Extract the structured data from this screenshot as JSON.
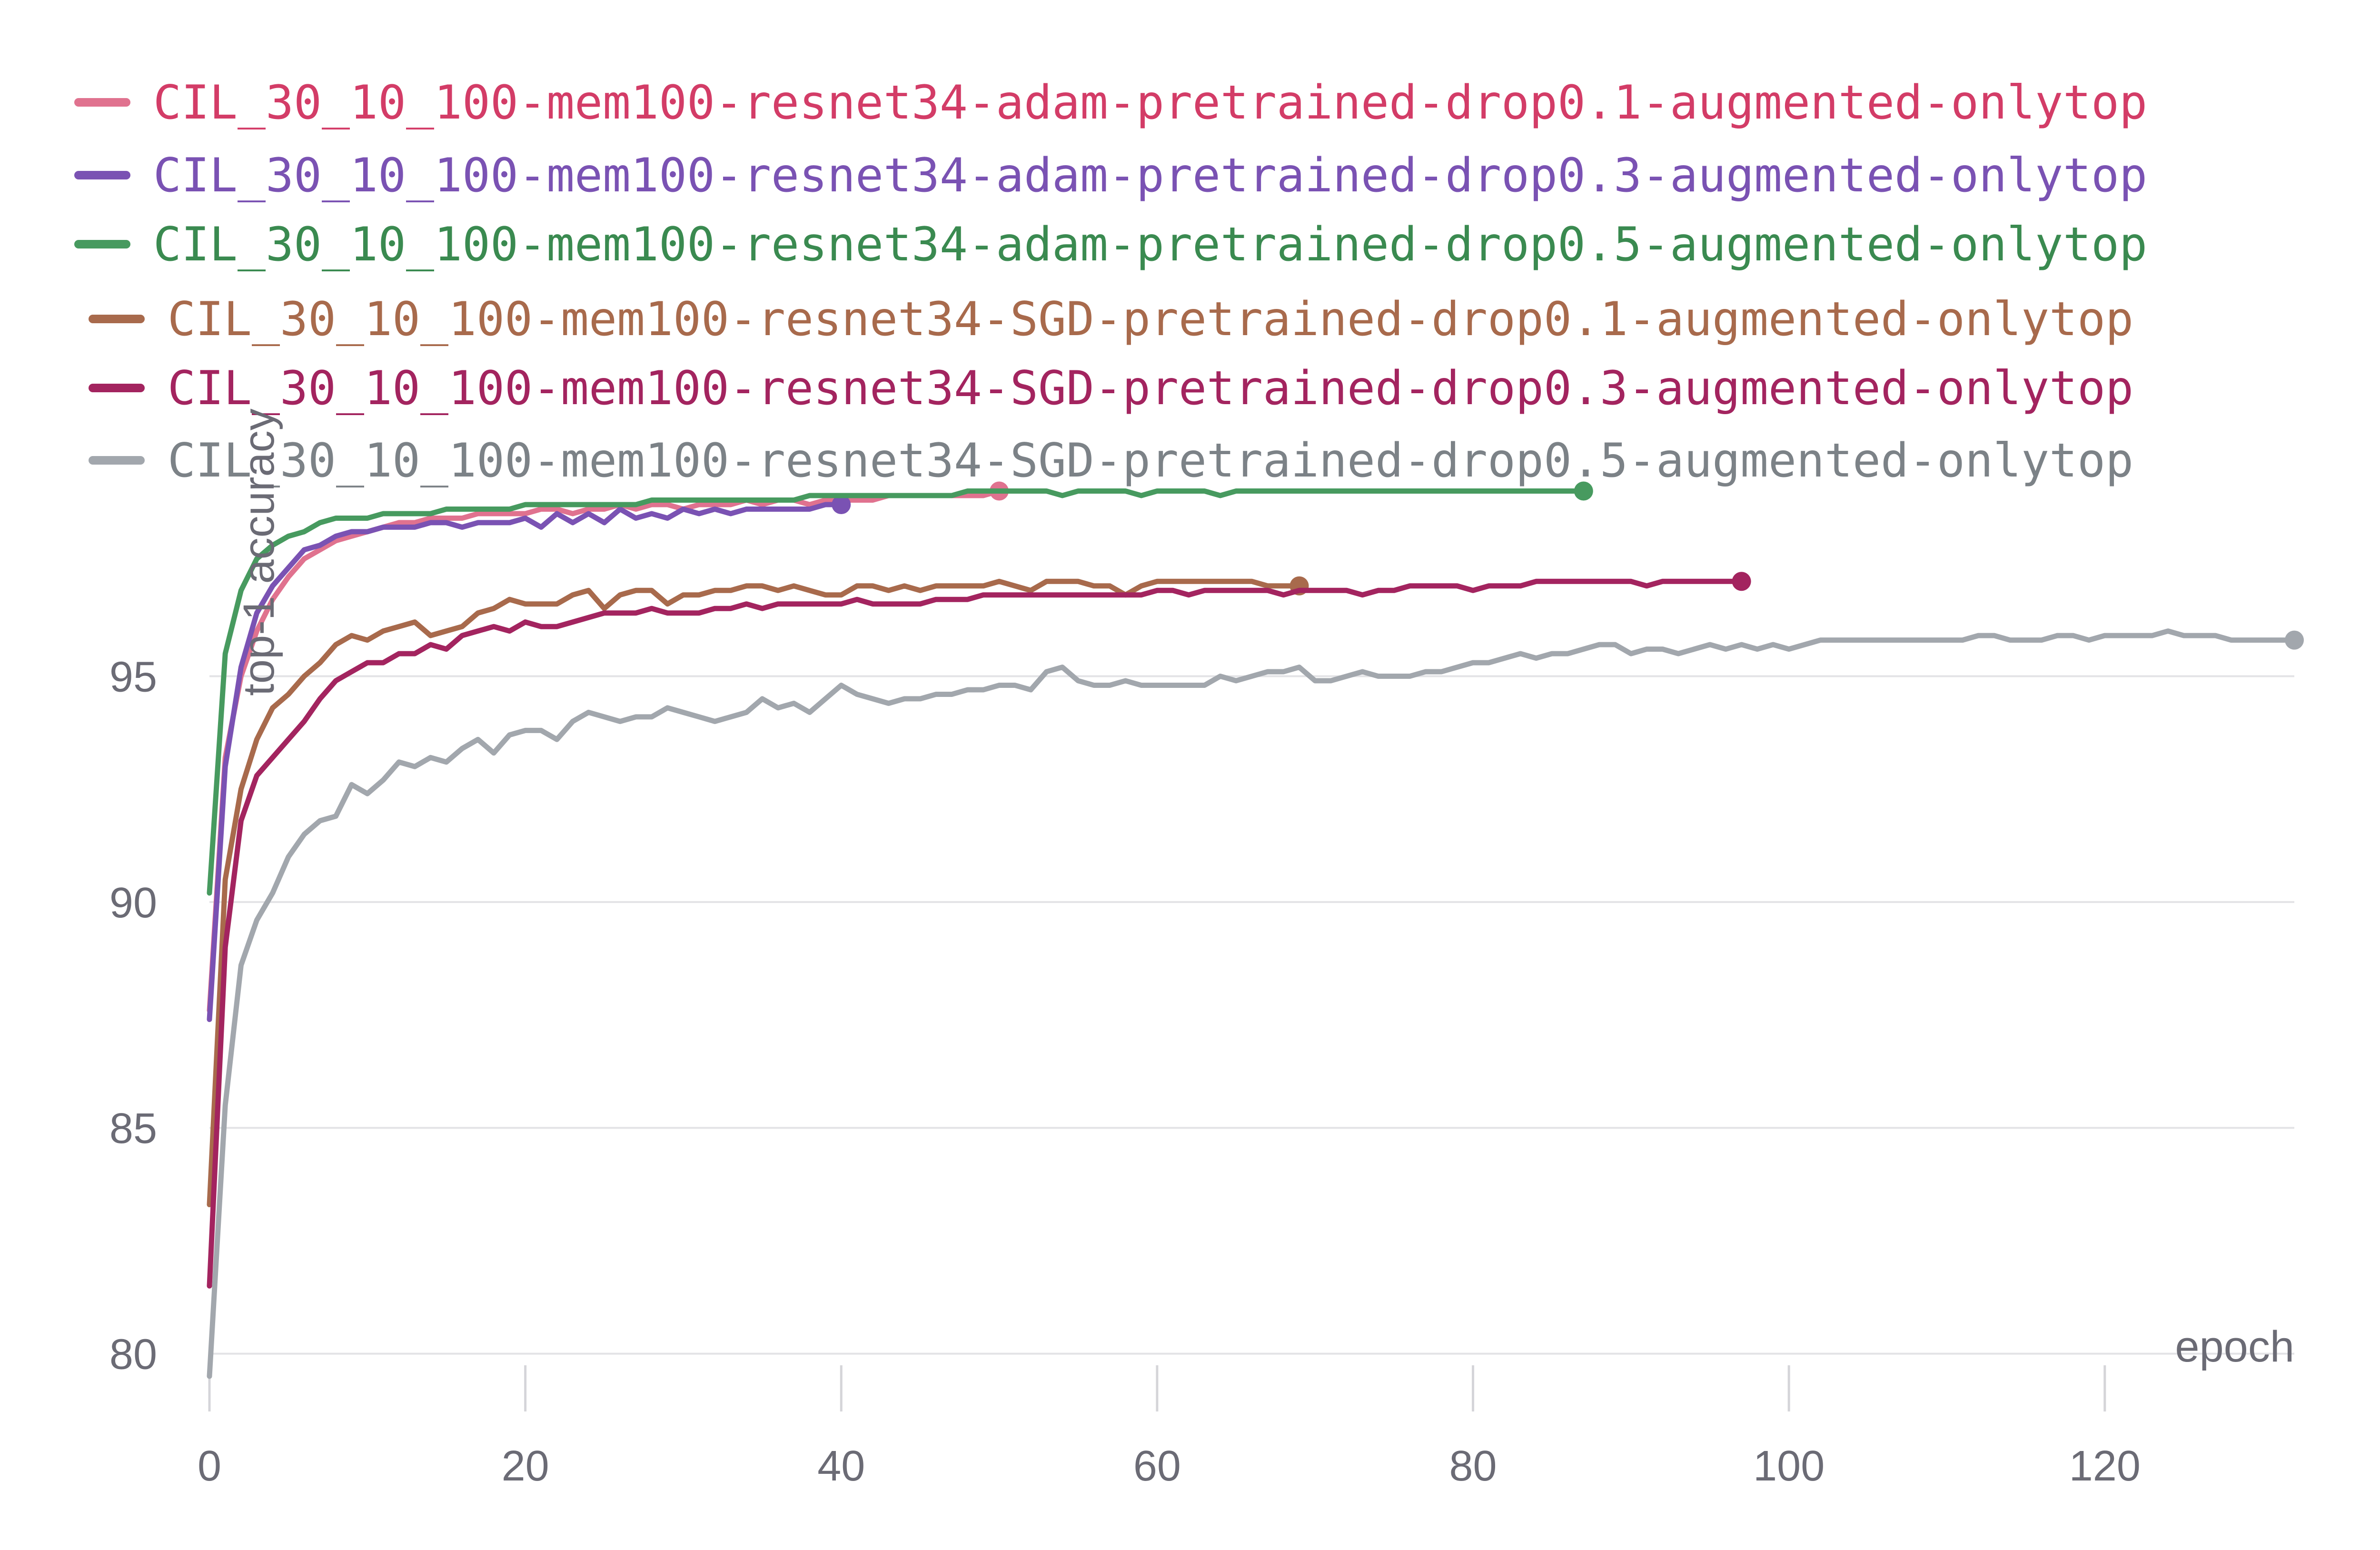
{
  "chart_data": {
    "type": "line",
    "xlabel": "epoch",
    "ylabel": "top-1 accuracy",
    "xlim": [
      0,
      132
    ],
    "ylim": [
      79.3,
      98.8
    ],
    "x_ticks": [
      "0",
      "20",
      "40",
      "60",
      "80",
      "100",
      "120"
    ],
    "y_ticks": [
      "80",
      "85",
      "90",
      "95"
    ],
    "grid": "horizontal",
    "legend_position": "top-left",
    "series": [
      {
        "name": "CIL_30_10_100-mem100-resnet34-adam-pretrained-drop0.1-augmented-onlytop",
        "color": "#e0728f",
        "text_color": "#d33c67",
        "x": [
          0,
          1,
          2,
          3,
          4,
          5,
          6,
          7,
          8,
          9,
          10,
          11,
          12,
          13,
          14,
          15,
          16,
          17,
          18,
          19,
          20,
          21,
          22,
          23,
          24,
          25,
          26,
          27,
          28,
          29,
          30,
          31,
          32,
          33,
          34,
          35,
          36,
          37,
          38,
          39,
          40,
          41,
          42,
          43,
          44,
          45,
          46,
          47,
          48,
          49,
          50
        ],
        "y": [
          87.6,
          93.2,
          95.0,
          96.0,
          96.7,
          97.2,
          97.6,
          97.8,
          98.0,
          98.1,
          98.2,
          98.3,
          98.4,
          98.4,
          98.5,
          98.5,
          98.5,
          98.6,
          98.6,
          98.6,
          98.6,
          98.7,
          98.7,
          98.6,
          98.7,
          98.7,
          98.8,
          98.7,
          98.8,
          98.8,
          98.7,
          98.8,
          98.8,
          98.8,
          98.9,
          98.8,
          98.9,
          98.9,
          98.8,
          98.9,
          98.9,
          98.9,
          98.9,
          99.0,
          99.0,
          99.0,
          99.0,
          99.0,
          99.0,
          99.0,
          99.1
        ]
      },
      {
        "name": "CIL_30_10_100-mem100-resnet34-adam-pretrained-drop0.3-augmented-onlytop",
        "color": "#7a52b3",
        "text_color": "#7a52b3",
        "x": [
          0,
          1,
          2,
          3,
          4,
          5,
          6,
          7,
          8,
          9,
          10,
          11,
          12,
          13,
          14,
          15,
          16,
          17,
          18,
          19,
          20,
          21,
          22,
          23,
          24,
          25,
          26,
          27,
          28,
          29,
          30,
          31,
          32,
          33,
          34,
          35,
          36,
          37,
          38,
          39,
          40
        ],
        "y": [
          87.4,
          93.0,
          95.2,
          96.4,
          97.0,
          97.4,
          97.8,
          97.9,
          98.1,
          98.2,
          98.2,
          98.3,
          98.3,
          98.3,
          98.4,
          98.4,
          98.3,
          98.4,
          98.4,
          98.4,
          98.5,
          98.3,
          98.6,
          98.4,
          98.6,
          98.4,
          98.7,
          98.5,
          98.6,
          98.5,
          98.7,
          98.6,
          98.7,
          98.6,
          98.7,
          98.7,
          98.7,
          98.7,
          98.7,
          98.8,
          98.8
        ]
      },
      {
        "name": "CIL_30_10_100-mem100-resnet34-adam-pretrained-drop0.5-augmented-onlytop",
        "color": "#479a5f",
        "text_color": "#3a8a50",
        "x": [
          0,
          1,
          2,
          3,
          4,
          5,
          6,
          7,
          8,
          9,
          10,
          11,
          12,
          13,
          14,
          15,
          16,
          17,
          18,
          19,
          20,
          21,
          22,
          23,
          24,
          25,
          26,
          27,
          28,
          29,
          30,
          31,
          32,
          33,
          34,
          35,
          36,
          37,
          38,
          39,
          40,
          41,
          42,
          43,
          44,
          45,
          46,
          47,
          48,
          49,
          50,
          51,
          52,
          53,
          54,
          55,
          56,
          57,
          58,
          59,
          60,
          61,
          62,
          63,
          64,
          65,
          66,
          67,
          68,
          69,
          70,
          71,
          72,
          73,
          74,
          75,
          76,
          77,
          78,
          79,
          80,
          81,
          82,
          83,
          84,
          85,
          86,
          87
        ],
        "y": [
          90.2,
          95.5,
          96.9,
          97.6,
          97.9,
          98.1,
          98.2,
          98.4,
          98.5,
          98.5,
          98.5,
          98.6,
          98.6,
          98.6,
          98.6,
          98.7,
          98.7,
          98.7,
          98.7,
          98.7,
          98.8,
          98.8,
          98.8,
          98.8,
          98.8,
          98.8,
          98.8,
          98.8,
          98.9,
          98.9,
          98.9,
          98.9,
          98.9,
          98.9,
          98.9,
          98.9,
          98.9,
          98.9,
          99.0,
          99.0,
          99.0,
          99.0,
          99.0,
          99.0,
          99.0,
          99.0,
          99.0,
          99.0,
          99.1,
          99.1,
          99.1,
          99.1,
          99.1,
          99.1,
          99.0,
          99.1,
          99.1,
          99.1,
          99.1,
          99.0,
          99.1,
          99.1,
          99.1,
          99.1,
          99.0,
          99.1,
          99.1,
          99.1,
          99.1,
          99.1,
          99.1,
          99.1,
          99.1,
          99.1,
          99.1,
          99.1,
          99.1,
          99.1,
          99.1,
          99.1,
          99.1,
          99.1,
          99.1,
          99.1,
          99.1,
          99.1,
          99.1,
          99.1
        ]
      },
      {
        "name": "CIL_30_10_100-mem100-resnet34-SGD-pretrained-drop0.1-augmented-onlytop",
        "color": "#a86a4c",
        "text_color": "#a86a4c",
        "x": [
          0,
          1,
          2,
          3,
          4,
          5,
          6,
          7,
          8,
          9,
          10,
          11,
          12,
          13,
          14,
          15,
          16,
          17,
          18,
          19,
          20,
          21,
          22,
          23,
          24,
          25,
          26,
          27,
          28,
          29,
          30,
          31,
          32,
          33,
          34,
          35,
          36,
          37,
          38,
          39,
          40,
          41,
          42,
          43,
          44,
          45,
          46,
          47,
          48,
          49,
          50,
          51,
          52,
          53,
          54,
          55,
          56,
          57,
          58,
          59,
          60,
          61,
          62,
          63,
          64,
          65,
          66,
          67,
          68,
          69
        ],
        "y": [
          83.3,
          90.5,
          92.5,
          93.6,
          94.3,
          94.6,
          95.0,
          95.3,
          95.7,
          95.9,
          95.8,
          96.0,
          96.1,
          96.2,
          95.9,
          96.0,
          96.1,
          96.4,
          96.5,
          96.7,
          96.6,
          96.6,
          96.6,
          96.8,
          96.9,
          96.5,
          96.8,
          96.9,
          96.9,
          96.6,
          96.8,
          96.8,
          96.9,
          96.9,
          97.0,
          97.0,
          96.9,
          97.0,
          96.9,
          96.8,
          96.8,
          97.0,
          97.0,
          96.9,
          97.0,
          96.9,
          97.0,
          97.0,
          97.0,
          97.0,
          97.1,
          97.0,
          96.9,
          97.1,
          97.1,
          97.1,
          97.0,
          97.0,
          96.8,
          97.0,
          97.1,
          97.1,
          97.1,
          97.1,
          97.1,
          97.1,
          97.1,
          97.0,
          97.0,
          97.0
        ]
      },
      {
        "name": "CIL_30_10_100-mem100-resnet34-SGD-pretrained-drop0.3-augmented-onlytop",
        "color": "#a3245f",
        "text_color": "#a3245f",
        "x": [
          0,
          1,
          2,
          3,
          4,
          5,
          6,
          7,
          8,
          9,
          10,
          11,
          12,
          13,
          14,
          15,
          16,
          17,
          18,
          19,
          20,
          21,
          22,
          23,
          24,
          25,
          26,
          27,
          28,
          29,
          30,
          31,
          32,
          33,
          34,
          35,
          36,
          37,
          38,
          39,
          40,
          41,
          42,
          43,
          44,
          45,
          46,
          47,
          48,
          49,
          50,
          51,
          52,
          53,
          54,
          55,
          56,
          57,
          58,
          59,
          60,
          61,
          62,
          63,
          64,
          65,
          66,
          67,
          68,
          69,
          70,
          71,
          72,
          73,
          74,
          75,
          76,
          77,
          78,
          79,
          80,
          81,
          82,
          83,
          84,
          85,
          86,
          87,
          88,
          89,
          90,
          91,
          92,
          93,
          94,
          95,
          96,
          97
        ],
        "y": [
          81.5,
          89.0,
          91.8,
          92.8,
          93.2,
          93.6,
          94.0,
          94.5,
          94.9,
          95.1,
          95.3,
          95.3,
          95.5,
          95.5,
          95.7,
          95.6,
          95.9,
          96.0,
          96.1,
          96.0,
          96.2,
          96.1,
          96.1,
          96.2,
          96.3,
          96.4,
          96.4,
          96.4,
          96.5,
          96.4,
          96.4,
          96.4,
          96.5,
          96.5,
          96.6,
          96.5,
          96.6,
          96.6,
          96.6,
          96.6,
          96.6,
          96.7,
          96.6,
          96.6,
          96.6,
          96.6,
          96.7,
          96.7,
          96.7,
          96.8,
          96.8,
          96.8,
          96.8,
          96.8,
          96.8,
          96.8,
          96.8,
          96.8,
          96.8,
          96.8,
          96.9,
          96.9,
          96.8,
          96.9,
          96.9,
          96.9,
          96.9,
          96.9,
          96.8,
          96.9,
          96.9,
          96.9,
          96.9,
          96.8,
          96.9,
          96.9,
          97.0,
          97.0,
          97.0,
          97.0,
          96.9,
          97.0,
          97.0,
          97.0,
          97.1,
          97.1,
          97.1,
          97.1,
          97.1,
          97.1,
          97.1,
          97.0,
          97.1,
          97.1,
          97.1,
          97.1,
          97.1,
          97.1
        ]
      },
      {
        "name": "CIL_30_10_100-mem100-resnet34-SGD-pretrained-drop0.5-augmented-onlytop",
        "color": "#a2a7ad",
        "text_color": "#7c8287",
        "x": [
          0,
          1,
          2,
          3,
          4,
          5,
          6,
          7,
          8,
          9,
          10,
          11,
          12,
          13,
          14,
          15,
          16,
          17,
          18,
          19,
          20,
          21,
          22,
          23,
          24,
          25,
          26,
          27,
          28,
          29,
          30,
          31,
          32,
          33,
          34,
          35,
          36,
          37,
          38,
          39,
          40,
          41,
          42,
          43,
          44,
          45,
          46,
          47,
          48,
          49,
          50,
          51,
          52,
          53,
          54,
          55,
          56,
          57,
          58,
          59,
          60,
          61,
          62,
          63,
          64,
          65,
          66,
          67,
          68,
          69,
          70,
          71,
          72,
          73,
          74,
          75,
          76,
          77,
          78,
          79,
          80,
          81,
          82,
          83,
          84,
          85,
          86,
          87,
          88,
          89,
          90,
          91,
          92,
          93,
          94,
          95,
          96,
          97,
          98,
          99,
          100,
          101,
          102,
          103,
          104,
          105,
          106,
          107,
          108,
          109,
          110,
          111,
          112,
          113,
          114,
          115,
          116,
          117,
          118,
          119,
          120,
          121,
          122,
          123,
          124,
          125,
          126,
          127,
          128,
          129,
          130,
          131,
          132
        ],
        "y": [
          79.5,
          85.5,
          88.6,
          89.6,
          90.2,
          91.0,
          91.5,
          91.8,
          91.9,
          92.6,
          92.4,
          92.7,
          93.1,
          93.0,
          93.2,
          93.1,
          93.4,
          93.6,
          93.3,
          93.7,
          93.8,
          93.8,
          93.6,
          94.0,
          94.2,
          94.1,
          94.0,
          94.1,
          94.1,
          94.3,
          94.2,
          94.1,
          94.0,
          94.1,
          94.2,
          94.5,
          94.3,
          94.4,
          94.2,
          94.5,
          94.8,
          94.6,
          94.5,
          94.4,
          94.5,
          94.5,
          94.6,
          94.6,
          94.7,
          94.7,
          94.8,
          94.8,
          94.7,
          95.1,
          95.2,
          94.9,
          94.8,
          94.8,
          94.9,
          94.8,
          94.8,
          94.8,
          94.8,
          94.8,
          95.0,
          94.9,
          95.0,
          95.1,
          95.1,
          95.2,
          94.9,
          94.9,
          95.0,
          95.1,
          95.0,
          95.0,
          95.0,
          95.1,
          95.1,
          95.2,
          95.3,
          95.3,
          95.4,
          95.5,
          95.4,
          95.5,
          95.5,
          95.6,
          95.7,
          95.7,
          95.5,
          95.6,
          95.6,
          95.5,
          95.6,
          95.7,
          95.6,
          95.7,
          95.6,
          95.7,
          95.6,
          95.7,
          95.8,
          95.8,
          95.8,
          95.8,
          95.8,
          95.8,
          95.8,
          95.8,
          95.8,
          95.8,
          95.9,
          95.9,
          95.8,
          95.8,
          95.8,
          95.9,
          95.9,
          95.8,
          95.9,
          95.9,
          95.9,
          95.9,
          96.0,
          95.9,
          95.9,
          95.9,
          95.8,
          95.8,
          95.8,
          95.8,
          95.8
        ]
      }
    ]
  }
}
